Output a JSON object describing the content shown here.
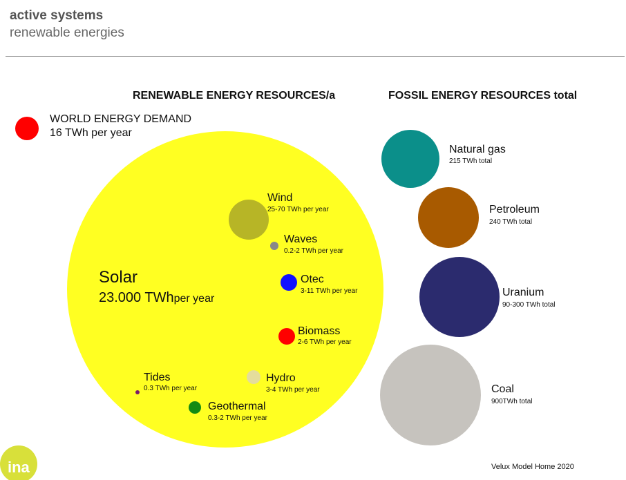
{
  "header": {
    "title": "active systems",
    "subtitle": "renewable energies"
  },
  "headings": {
    "renewable": "RENEWABLE ENERGY RESOURCES/a",
    "fossil": "FOSSIL ENERGY RESOURCES total"
  },
  "demand": {
    "name": "WORLD ENERGY DEMAND",
    "value": "16 TWh per year",
    "color": "#ff0000"
  },
  "solar": {
    "name": "Solar",
    "value": "23.000 TWh",
    "unit": "per year",
    "color": "#ffff22"
  },
  "renewables": [
    {
      "name": "Wind",
      "value": "25-70 TWh per year",
      "color": "#b7b526"
    },
    {
      "name": "Waves",
      "value": "0.2-2 TWh per year",
      "color": "#888888"
    },
    {
      "name": "Otec",
      "value": "3-11 TWh per year",
      "color": "#1010ff"
    },
    {
      "name": "Biomass",
      "value": "2-6 TWh per year",
      "color": "#ff0000"
    },
    {
      "name": "Hydro",
      "value": "3-4 TWh per year",
      "color": "#e4dd9c"
    },
    {
      "name": "Tides",
      "value": "0.3 TWh per year",
      "color": "#7a1a6a"
    },
    {
      "name": "Geothermal",
      "value": "0.3-2 TWh per year",
      "color": "#138a13"
    }
  ],
  "fossil": [
    {
      "name": "Natural gas",
      "value": "215 TWh total",
      "color": "#0b8f8a"
    },
    {
      "name": "Petroleum",
      "value": "240 TWh total",
      "color": "#a85a00"
    },
    {
      "name": "Uranium",
      "value": "90-300 TWh total",
      "color": "#2b2b6e"
    },
    {
      "name": "Coal",
      "value": "900TWh total",
      "color": "#c6c3be"
    }
  ],
  "logo": {
    "text": "ina",
    "color": "#d8e03a"
  },
  "footer": {
    "credit": "Velux Model Home 2020"
  }
}
